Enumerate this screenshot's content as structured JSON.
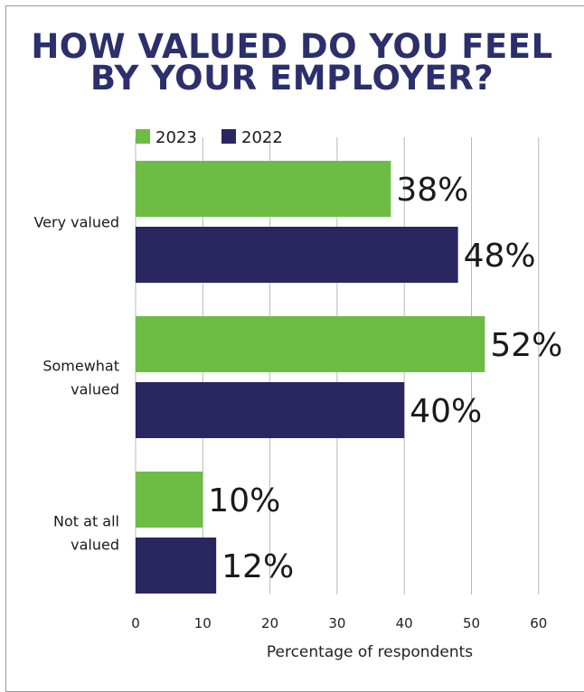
{
  "chart_data": {
    "type": "bar",
    "orientation": "horizontal",
    "title": [
      "HOW VALUED DO YOU FEEL",
      "BY YOUR EMPLOYER?"
    ],
    "categories": [
      [
        "Very valued"
      ],
      [
        "Somewhat",
        "valued"
      ],
      [
        "Not at all",
        "valued"
      ]
    ],
    "series": [
      {
        "name": "2023",
        "color": "#6dbd45",
        "values": [
          38,
          52,
          10
        ],
        "labels": [
          "38%",
          "52%",
          "10%"
        ]
      },
      {
        "name": "2022",
        "color": "#2a2660",
        "values": [
          48,
          40,
          12
        ],
        "labels": [
          "48%",
          "40%",
          "12%"
        ]
      }
    ],
    "xlabel": "Percentage of respondents",
    "xlim": [
      0,
      60
    ],
    "xticks": [
      0,
      10,
      20,
      30,
      40,
      50,
      60
    ],
    "grid": true,
    "legend_position": "top-left"
  }
}
